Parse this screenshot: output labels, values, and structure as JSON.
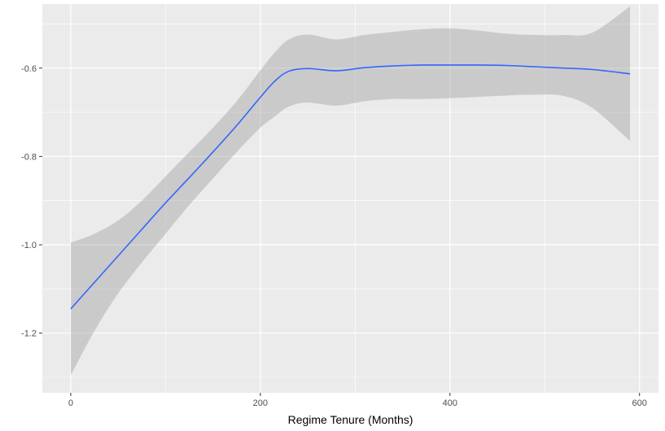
{
  "chart_data": {
    "type": "line",
    "title": "",
    "xlabel": "Regime Tenure (Months)",
    "ylabel": "",
    "xlim": [
      -30,
      620
    ],
    "ylim": [
      -1.335,
      -0.455
    ],
    "x_ticks": [
      0,
      200,
      400,
      600
    ],
    "x_tick_labels": [
      "0",
      "200",
      "400",
      "600"
    ],
    "y_ticks": [
      -1.2,
      -1.0,
      -0.8,
      -0.6
    ],
    "y_tick_labels": [
      "-1.2",
      "-1.0",
      "-0.8",
      "-0.6"
    ],
    "grid": true,
    "colors": {
      "panel": "#EBEBEB",
      "grid": "#FFFFFF",
      "line": "#3366FF",
      "band": "#999999"
    },
    "series": [
      {
        "x": [
          0,
          25,
          50,
          75,
          100,
          125,
          150,
          175,
          200,
          215,
          230,
          250,
          280,
          310,
          340,
          370,
          400,
          430,
          460,
          490,
          520,
          550,
          590
        ],
        "y": [
          -1.145,
          -1.085,
          -1.025,
          -0.965,
          -0.905,
          -0.848,
          -0.79,
          -0.73,
          -0.666,
          -0.63,
          -0.607,
          -0.601,
          -0.606,
          -0.599,
          -0.595,
          -0.593,
          -0.593,
          -0.593,
          -0.594,
          -0.597,
          -0.6,
          -0.603,
          -0.613
        ],
        "lower": [
          -1.295,
          -1.195,
          -1.11,
          -1.04,
          -0.975,
          -0.91,
          -0.85,
          -0.79,
          -0.735,
          -0.71,
          -0.687,
          -0.678,
          -0.685,
          -0.675,
          -0.67,
          -0.67,
          -0.668,
          -0.665,
          -0.662,
          -0.66,
          -0.663,
          -0.69,
          -0.765
        ],
        "upper": [
          -0.995,
          -0.975,
          -0.945,
          -0.9,
          -0.845,
          -0.79,
          -0.735,
          -0.675,
          -0.605,
          -0.565,
          -0.535,
          -0.524,
          -0.535,
          -0.525,
          -0.518,
          -0.512,
          -0.51,
          -0.515,
          -0.522,
          -0.525,
          -0.525,
          -0.52,
          -0.46
        ]
      }
    ]
  }
}
